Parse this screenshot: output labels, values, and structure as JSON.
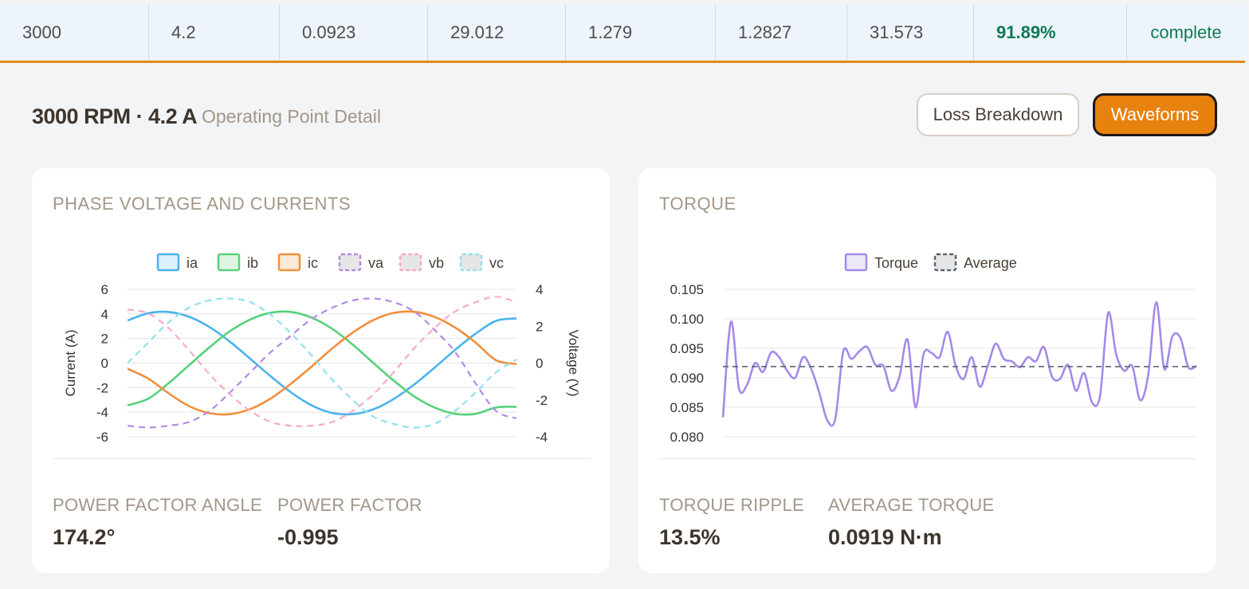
{
  "table_row": {
    "cells": [
      "3000",
      "4.2",
      "0.0923",
      "29.012",
      "1.279",
      "1.2827",
      "31.573",
      "91.89%",
      "complete"
    ]
  },
  "detail": {
    "title": "3000 RPM · 4.2 A",
    "subtitle": "Operating Point Detail",
    "buttons": {
      "loss_label": "Loss Breakdown",
      "wave_label": "Waveforms"
    }
  },
  "colors": {
    "accent": "#e8820f",
    "ia": "#4bb3ea",
    "ib": "#56d17a",
    "ic": "#f18f3b",
    "va": "#b48ae3",
    "vb": "#f7a9c9",
    "vc": "#93e0ee",
    "torque": "#a58ae8",
    "average": "#5a6473",
    "positive": "#0f7a55"
  },
  "phase_card": {
    "title": "PHASE VOLTAGE AND CURRENTS",
    "stats": [
      {
        "label": "POWER FACTOR ANGLE",
        "value": "174.2°"
      },
      {
        "label": "POWER FACTOR",
        "value": "-0.995"
      }
    ]
  },
  "torque_card": {
    "title": "TORQUE",
    "stats": [
      {
        "label": "TORQUE RIPPLE",
        "value": "13.5%"
      },
      {
        "label": "AVERAGE TORQUE",
        "value": "0.0919 N·m"
      }
    ]
  },
  "chart_data": [
    {
      "type": "line",
      "title": "",
      "ylabel": "Current (A)",
      "y2label": "Voltage (V)",
      "ylim": [
        -6,
        6
      ],
      "y2lim": [
        -4,
        4
      ],
      "yticks": [
        6,
        4,
        2,
        0,
        -2,
        -4,
        -6
      ],
      "y2ticks": [
        4,
        2,
        0,
        -2,
        -4
      ],
      "grid": true,
      "legend": "top",
      "series": [
        {
          "name": "ia",
          "axis": "left",
          "style": "solid",
          "values": [
            3.46,
            4.05,
            4.16,
            3.77,
            2.93,
            1.74,
            0.34,
            -1.09,
            -2.4,
            -3.45,
            -4.06,
            -4.16,
            -3.77,
            -2.93,
            -1.75,
            -0.37,
            1.07,
            2.39,
            3.43,
            3.64
          ]
        },
        {
          "name": "ib",
          "axis": "left",
          "style": "solid",
          "values": [
            -3.44,
            -2.91,
            -1.65,
            -0.18,
            1.27,
            2.59,
            3.55,
            4.1,
            4.16,
            3.69,
            2.78,
            1.5,
            0.02,
            -1.43,
            -2.71,
            -3.62,
            -4.13,
            -4.14,
            -3.62,
            -3.56
          ]
        },
        {
          "name": "ic",
          "axis": "left",
          "style": "solid",
          "values": [
            -0.47,
            -1.25,
            -2.45,
            -3.5,
            -4.08,
            -4.16,
            -3.74,
            -2.88,
            -1.66,
            -0.27,
            1.19,
            2.48,
            3.49,
            4.08,
            4.17,
            3.75,
            2.89,
            1.67,
            0.23,
            -0.08
          ]
        },
        {
          "name": "va",
          "axis": "right",
          "style": "dashed",
          "values": [
            -3.4,
            -3.5,
            -3.4,
            -3.2,
            -2.6,
            -1.6,
            -0.5,
            0.6,
            1.5,
            2.4,
            3.0,
            3.4,
            3.5,
            3.3,
            2.8,
            1.8,
            0.6,
            -1.1,
            -2.6,
            -3.0
          ]
        },
        {
          "name": "vb",
          "axis": "right",
          "style": "dashed",
          "values": [
            2.9,
            2.7,
            1.9,
            0.7,
            -0.6,
            -1.7,
            -2.6,
            -3.2,
            -3.4,
            -3.4,
            -3.2,
            -2.6,
            -1.7,
            -0.5,
            0.8,
            1.9,
            2.8,
            3.3,
            3.6,
            3.3
          ]
        },
        {
          "name": "vc",
          "axis": "right",
          "style": "dashed",
          "values": [
            0.0,
            1.1,
            2.2,
            3.0,
            3.4,
            3.5,
            3.3,
            2.6,
            1.6,
            0.4,
            -0.9,
            -2.0,
            -2.9,
            -3.3,
            -3.5,
            -3.3,
            -2.6,
            -1.6,
            -0.5,
            0.2
          ]
        }
      ]
    },
    {
      "type": "line",
      "title": "",
      "ylabel": "",
      "ylim": [
        0.08,
        0.105
      ],
      "yticks": [
        "0.105",
        "0.100",
        "0.095",
        "0.090",
        "0.085",
        "0.080"
      ],
      "grid": true,
      "legend": "top",
      "series": [
        {
          "name": "Torque",
          "style": "solid",
          "values": [
            0.0833,
            0.0995,
            0.0882,
            0.0888,
            0.0925,
            0.091,
            0.0943,
            0.0935,
            0.0912,
            0.09,
            0.0935,
            0.0915,
            0.0875,
            0.0828,
            0.083,
            0.0945,
            0.0932,
            0.0945,
            0.0952,
            0.0922,
            0.092,
            0.0878,
            0.0902,
            0.0965,
            0.085,
            0.094,
            0.0942,
            0.0935,
            0.0978,
            0.092,
            0.0898,
            0.0935,
            0.0885,
            0.092,
            0.0958,
            0.0932,
            0.0928,
            0.0918,
            0.0935,
            0.0928,
            0.0952,
            0.0902,
            0.0898,
            0.0922,
            0.0878,
            0.0908,
            0.0858,
            0.087,
            0.101,
            0.094,
            0.0912,
            0.092,
            0.0862,
            0.0905,
            0.1028,
            0.0915,
            0.097,
            0.0968,
            0.0918,
            0.092
          ]
        },
        {
          "name": "Average",
          "style": "dashed",
          "constant": 0.0919
        }
      ]
    }
  ]
}
